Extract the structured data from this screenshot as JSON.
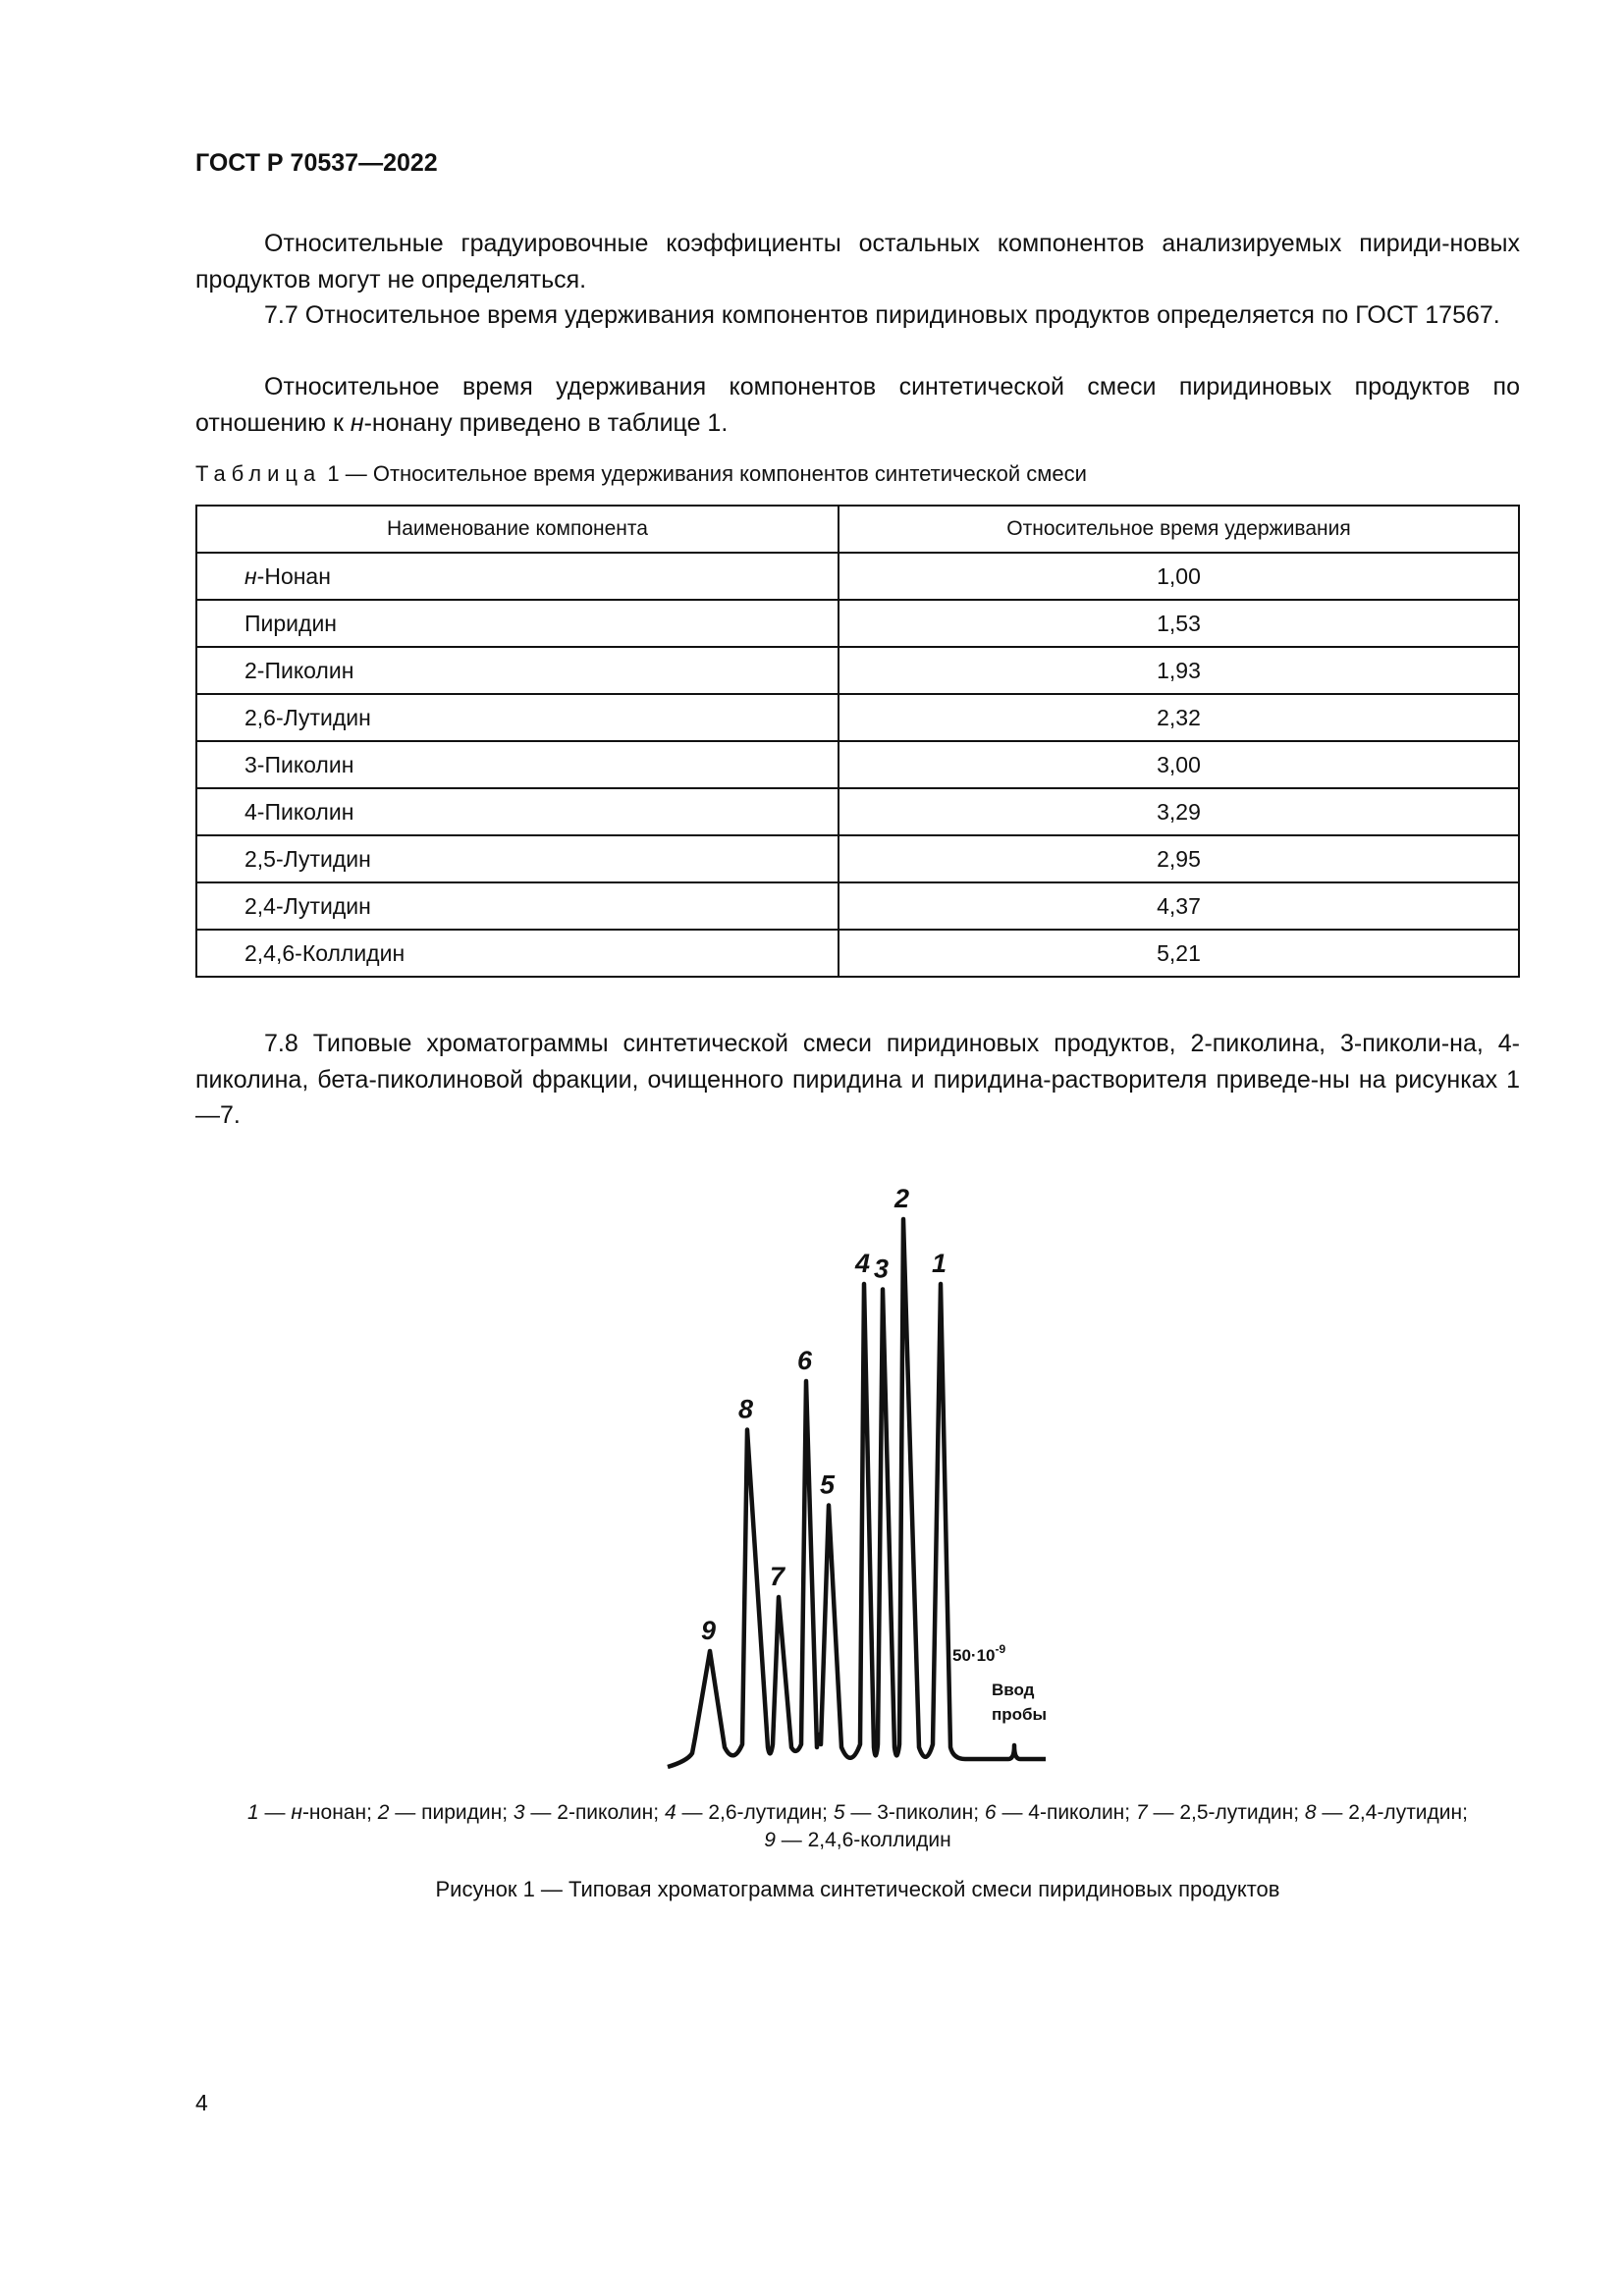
{
  "header": {
    "title": "ГОСТ Р 70537—2022"
  },
  "paragraphs": [
    "Относительные градуировочные коэффициенты остальных компонентов анализируемых пириди-новых продуктов могут не определяться.",
    "7.7 Относительное время удерживания компонентов пиридиновых продуктов определяется по ГОСТ 17567."
  ],
  "para3": {
    "before": "Относительное время удерживания компонентов синтетической смеси пиридиновых продуктов по отношению к ",
    "italic": "н",
    "after": "-нонану приведено в таблице 1."
  },
  "table": {
    "caption_label": "Таблица",
    "caption_text": " 1 — Относительное время удерживания компонентов синтетической смеси",
    "headers": [
      "Наименование компонента",
      "Относительное время удерживания"
    ],
    "rows": [
      {
        "prefix": "н",
        "name": "-Нонан",
        "value": "1,00"
      },
      {
        "prefix": "",
        "name": "Пиридин",
        "value": "1,53"
      },
      {
        "prefix": "",
        "name": "2-Пиколин",
        "value": "1,93"
      },
      {
        "prefix": "",
        "name": "2,6-Лутидин",
        "value": "2,32"
      },
      {
        "prefix": "",
        "name": "3-Пиколин",
        "value": "3,00"
      },
      {
        "prefix": "",
        "name": "4-Пиколин",
        "value": "3,29"
      },
      {
        "prefix": "",
        "name": "2,5-Лутидин",
        "value": "2,95"
      },
      {
        "prefix": "",
        "name": "2,4-Лутидин",
        "value": "4,37"
      },
      {
        "prefix": "",
        "name": "2,4,6-Коллидин",
        "value": "5,21"
      }
    ]
  },
  "para78": "7.8 Типовые хроматограммы синтетической смеси пиридиновых продуктов, 2-пиколина, 3-пиколи-на, 4-пиколина, бета-пиколиновой фракции, очищенного пиридина и пиридина-растворителя приведе-ны на рисунках 1—7.",
  "chart_data": {
    "type": "line",
    "title": "",
    "peaks": [
      {
        "label": "9",
        "relative_height": 0.2
      },
      {
        "label": "8",
        "relative_height": 0.61
      },
      {
        "label": "7",
        "relative_height": 0.3
      },
      {
        "label": "6",
        "relative_height": 0.7
      },
      {
        "label": "5",
        "relative_height": 0.47
      },
      {
        "label": "4",
        "relative_height": 0.88
      },
      {
        "label": "3",
        "relative_height": 0.87
      },
      {
        "label": "2",
        "relative_height": 1.0
      },
      {
        "label": "1",
        "relative_height": 0.88
      }
    ],
    "scale_label": "50·10",
    "scale_exp": "-9",
    "injection_label_1": "Ввод",
    "injection_label_2": "пробы",
    "grid": false
  },
  "legend": [
    {
      "num": "1",
      "pre": "н",
      "name": "-нонан;"
    },
    {
      "num": "2",
      "pre": "",
      "name": "пиридин;"
    },
    {
      "num": "3",
      "pre": "",
      "name": "2-пиколин;"
    },
    {
      "num": "4",
      "pre": "",
      "name": "2,6-лутидин;"
    },
    {
      "num": "5",
      "pre": "",
      "name": "3-пиколин;"
    },
    {
      "num": "6",
      "pre": "",
      "name": "4-пиколин;"
    },
    {
      "num": "7",
      "pre": "",
      "name": "2,5-лутидин;"
    },
    {
      "num": "8",
      "pre": "",
      "name": "2,4-лутидин;"
    },
    {
      "num": "9",
      "pre": "",
      "name": "2,4,6-коллидин"
    }
  ],
  "figure_caption": "Рисунок 1 — Типовая хроматограмма синтетической смеси пиридиновых продуктов",
  "page_number": "4"
}
